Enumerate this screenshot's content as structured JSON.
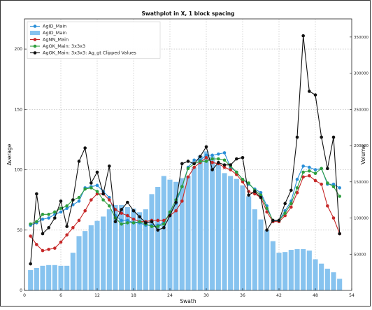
{
  "chart_data": {
    "type": "line",
    "title": "Swathplot in X, 1 block spacing",
    "xlabel": "Swath",
    "ylabel": "Average",
    "y2label": "Volume",
    "xlim": [
      0,
      54
    ],
    "ylim": [
      0,
      225
    ],
    "y2lim": [
      0,
      375000
    ],
    "xticks": [
      0,
      6,
      12,
      18,
      24,
      30,
      36,
      42,
      48,
      54
    ],
    "yticks": [
      0,
      50,
      100,
      150,
      200
    ],
    "y2ticks": [
      50000,
      100000,
      150000,
      200000,
      250000,
      300000,
      350000
    ],
    "grid": true,
    "legend_position": "top-left",
    "x": [
      1,
      2,
      3,
      4,
      5,
      6,
      7,
      8,
      9,
      10,
      11,
      12,
      13,
      14,
      15,
      16,
      17,
      18,
      19,
      20,
      21,
      22,
      23,
      24,
      25,
      26,
      27,
      28,
      29,
      30,
      31,
      32,
      33,
      34,
      35,
      36,
      37,
      38,
      39,
      40,
      41,
      42,
      43,
      44,
      45,
      46,
      47,
      48,
      49,
      50,
      51,
      52
    ],
    "bars": {
      "name": "AgID_Main",
      "axis": "right",
      "color": "#87c3ef",
      "values": [
        28000,
        31000,
        34000,
        35000,
        35000,
        34000,
        34000,
        52000,
        75000,
        82000,
        90000,
        96000,
        102000,
        112000,
        118000,
        118000,
        115000,
        113000,
        108000,
        112000,
        133000,
        143000,
        158000,
        153000,
        150000,
        155000,
        158000,
        170000,
        186000,
        192000,
        185000,
        173000,
        162000,
        158000,
        154000,
        145000,
        130000,
        112000,
        98000,
        83000,
        68000,
        52000,
        53000,
        56000,
        57000,
        57000,
        55000,
        43000,
        37000,
        30000,
        25000,
        16000
      ]
    },
    "series": [
      {
        "name": "AgID_Main",
        "color": "#2a8fd8",
        "values": [
          54,
          56,
          59,
          60,
          63,
          65,
          68,
          71,
          74,
          85,
          86,
          87,
          82,
          77,
          62,
          58,
          58,
          56,
          56,
          54,
          54,
          54,
          56,
          64,
          72,
          86,
          102,
          108,
          108,
          112,
          112,
          113,
          114,
          102,
          98,
          92,
          88,
          84,
          81,
          70,
          57,
          58,
          66,
          74,
          92,
          103,
          102,
          100,
          101,
          88,
          88,
          85
        ]
      },
      {
        "name": "AgNN_Main",
        "color": "#c62828",
        "values": [
          45,
          38,
          33,
          34,
          35,
          40,
          46,
          52,
          58,
          66,
          75,
          80,
          80,
          75,
          67,
          64,
          62,
          59,
          57,
          57,
          58,
          58,
          58,
          62,
          66,
          74,
          94,
          102,
          106,
          110,
          106,
          105,
          102,
          100,
          96,
          90,
          82,
          80,
          77,
          65,
          57,
          57,
          62,
          69,
          81,
          94,
          95,
          91,
          88,
          70,
          60,
          47
        ]
      },
      {
        "name": "AgOK_Main: 3x3x3",
        "color": "#2e9e3e",
        "values": [
          55,
          57,
          63,
          63,
          65,
          68,
          70,
          75,
          77,
          84,
          85,
          82,
          75,
          70,
          60,
          55,
          56,
          56,
          57,
          55,
          53,
          53,
          55,
          65,
          75,
          86,
          101,
          105,
          107,
          107,
          109,
          109,
          108,
          103,
          98,
          92,
          89,
          83,
          79,
          68,
          58,
          58,
          64,
          72,
          85,
          98,
          99,
          97,
          101,
          89,
          86,
          78
        ]
      },
      {
        "name": "AgOK_Main: 3x3x3: Ag_gt Clipped Values",
        "color": "#111111",
        "values": [
          22,
          80,
          47,
          52,
          60,
          74,
          53,
          75,
          107,
          118,
          89,
          98,
          80,
          103,
          57,
          67,
          73,
          66,
          61,
          56,
          57,
          50,
          52,
          62,
          73,
          105,
          107,
          105,
          111,
          119,
          100,
          106,
          104,
          104,
          109,
          110,
          79,
          82,
          77,
          50,
          58,
          58,
          72,
          83,
          127,
          211,
          165,
          162,
          127,
          101,
          127,
          47
        ]
      }
    ]
  }
}
